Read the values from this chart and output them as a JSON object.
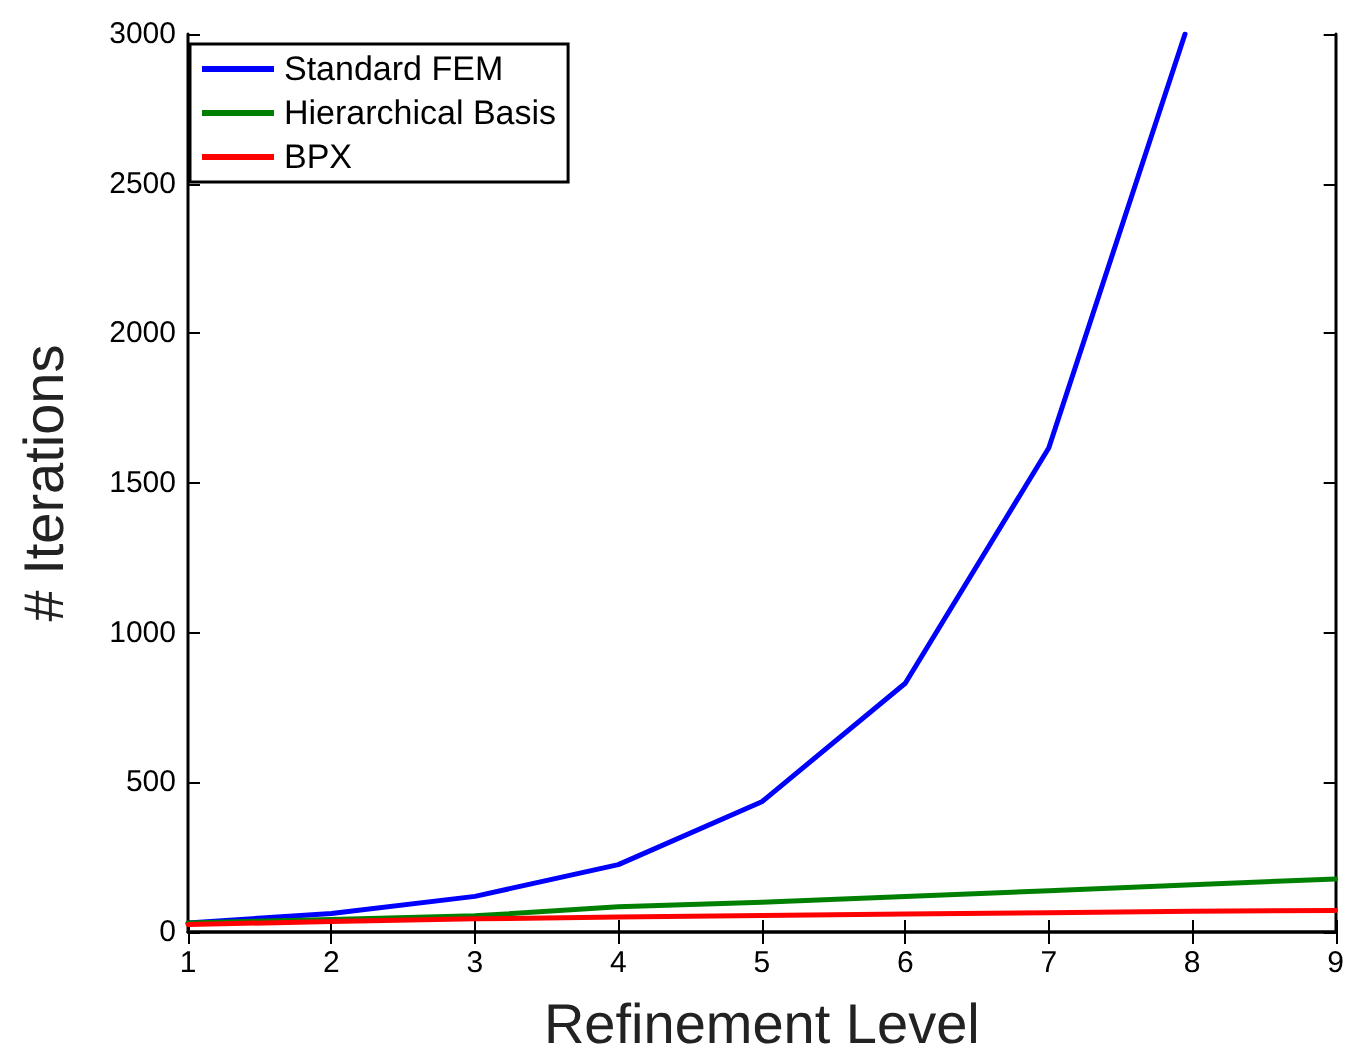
{
  "chart_data": {
    "type": "line",
    "xlabel": "Refinement Level",
    "ylabel": "# Iterations",
    "x": [
      1,
      2,
      3,
      4,
      5,
      6,
      7,
      8,
      9
    ],
    "series": [
      {
        "name": "Standard FEM",
        "color": "#0000ff",
        "x": [
          1,
          2,
          3,
          4,
          5,
          6,
          7,
          7.95
        ],
        "values": [
          30,
          62,
          119,
          225,
          435,
          831,
          1617,
          3000
        ]
      },
      {
        "name": "Hierarchical Basis",
        "color": "#008000",
        "values": [
          30,
          42,
          54,
          84,
          99,
          119,
          138,
          158,
          177
        ]
      },
      {
        "name": "BPX",
        "color": "#ff0000",
        "values": [
          25,
          35,
          44,
          50,
          55,
          60,
          64,
          69,
          72
        ]
      }
    ],
    "xlim": [
      1,
      9
    ],
    "xticks": [
      1,
      2,
      3,
      4,
      5,
      6,
      7,
      8,
      9
    ],
    "ylim": [
      0,
      3000
    ],
    "yticks": [
      0,
      500,
      1000,
      1500,
      2000,
      2500,
      3000
    ],
    "grid": false,
    "legend": "top left",
    "marker": "none",
    "line_style": "solid"
  }
}
